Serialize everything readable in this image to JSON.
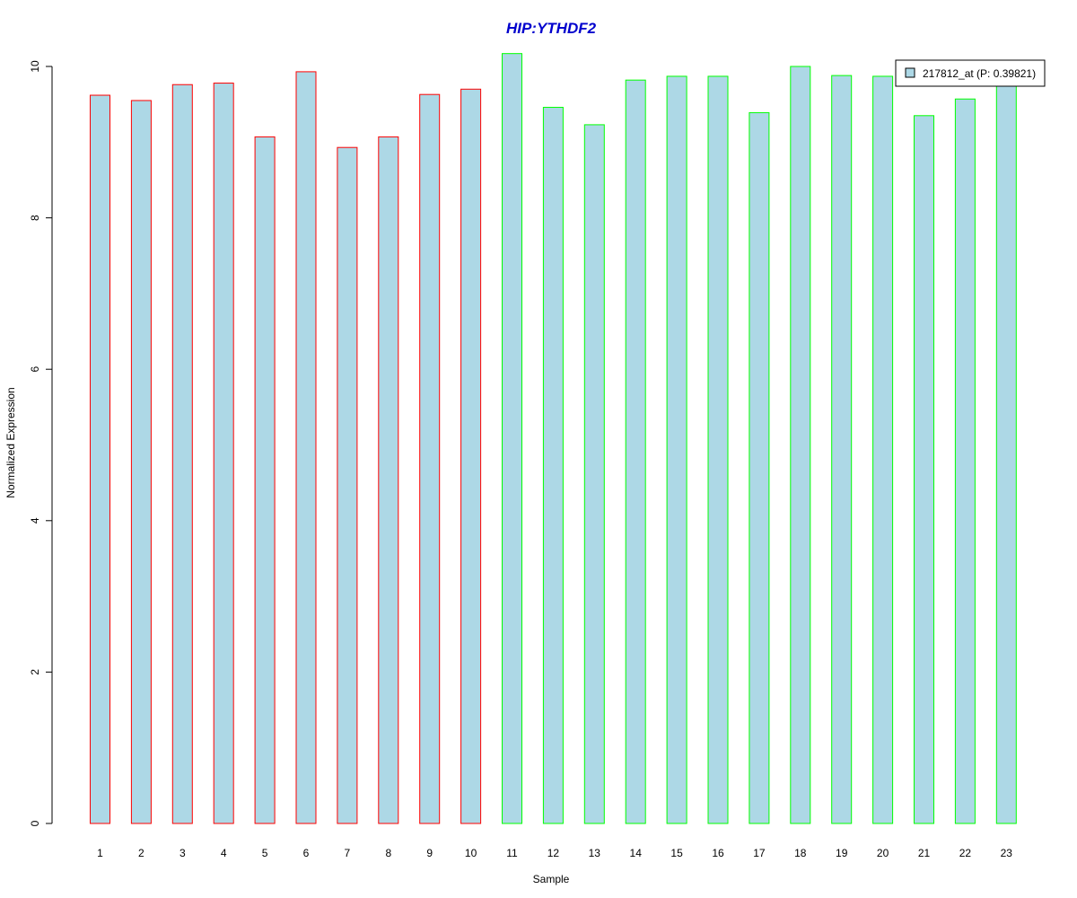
{
  "chart_data": {
    "type": "bar",
    "title": "HIP:YTHDF2",
    "xlabel": "Sample",
    "ylabel": "Normalized Expression",
    "categories": [
      "1",
      "2",
      "3",
      "4",
      "5",
      "6",
      "7",
      "8",
      "9",
      "10",
      "11",
      "12",
      "13",
      "14",
      "15",
      "16",
      "17",
      "18",
      "19",
      "20",
      "21",
      "22",
      "23"
    ],
    "series": [
      {
        "name": "217812_at (P: 0.39821)",
        "values": [
          9.62,
          9.55,
          9.76,
          9.78,
          9.07,
          9.93,
          8.93,
          9.07,
          9.63,
          9.7,
          10.17,
          9.46,
          9.23,
          9.82,
          9.87,
          9.87,
          9.39,
          10.0,
          9.88,
          9.87,
          9.35,
          9.57,
          9.8
        ]
      }
    ],
    "group_border_colors": [
      "#ff0000",
      "#ff0000",
      "#ff0000",
      "#ff0000",
      "#ff0000",
      "#ff0000",
      "#ff0000",
      "#ff0000",
      "#ff0000",
      "#ff0000",
      "#00ff00",
      "#00ff00",
      "#00ff00",
      "#00ff00",
      "#00ff00",
      "#00ff00",
      "#00ff00",
      "#00ff00",
      "#00ff00",
      "#00ff00",
      "#00ff00",
      "#00ff00",
      "#00ff00"
    ],
    "bar_fill_color": "#add8e6",
    "title_color": "#0000cd",
    "yticks": [
      "0",
      "2",
      "4",
      "6",
      "8",
      "10"
    ],
    "ylim": [
      0,
      10.4
    ],
    "grid": false,
    "legend_position": "top-right"
  }
}
